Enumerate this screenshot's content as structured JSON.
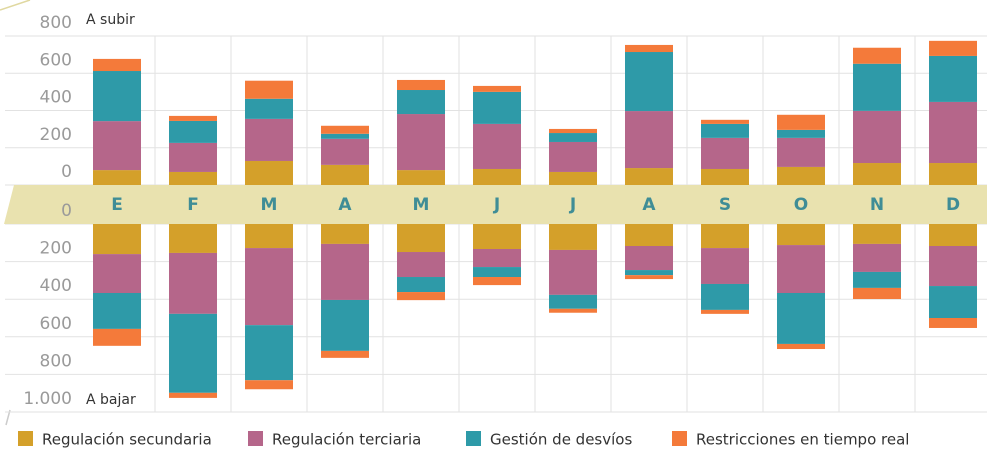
{
  "chart_data": {
    "type": "bar",
    "stacked": true,
    "categories": [
      "E",
      "F",
      "M",
      "A",
      "M",
      "J",
      "J",
      "A",
      "S",
      "O",
      "N",
      "D"
    ],
    "upper": {
      "label": "A subir",
      "ylim": [
        0,
        800
      ],
      "yticks": [
        0,
        200,
        400,
        600,
        800
      ]
    },
    "lower": {
      "label": "A bajar",
      "ylim": [
        0,
        1000
      ],
      "yticks": [
        0,
        200,
        400,
        600,
        800,
        {
          "value": 1000,
          "label": "1.000"
        }
      ]
    },
    "grid": true,
    "series": [
      {
        "name": "Regulación secundaria",
        "color": "#d4a02a",
        "up": [
          80,
          70,
          129,
          108,
          80,
          86,
          70,
          91,
          86,
          97,
          118,
          118
        ],
        "down": [
          160,
          154,
          128,
          106,
          149,
          133,
          138,
          117,
          128,
          112,
          106,
          117
        ]
      },
      {
        "name": "Regulación terciaria",
        "color": "#b5668a",
        "up": [
          263,
          156,
          226,
          140,
          301,
          242,
          161,
          306,
          167,
          156,
          280,
          328
        ],
        "down": [
          207,
          324,
          410,
          298,
          133,
          96,
          239,
          128,
          191,
          255,
          149,
          213
        ]
      },
      {
        "name": "Gestión de desvíos",
        "color": "#2e9aa8",
        "up": [
          269,
          118,
          108,
          27,
          129,
          172,
          48,
          317,
          75,
          43,
          253,
          247
        ],
        "down": [
          191,
          420,
          293,
          271,
          80,
          53,
          74,
          27,
          138,
          271,
          85,
          170
        ]
      },
      {
        "name": "Restricciones en tiempo real",
        "color": "#f47a3a",
        "up": [
          65,
          27,
          97,
          43,
          54,
          32,
          22,
          38,
          22,
          81,
          86,
          81
        ],
        "down": [
          90,
          27,
          48,
          37,
          43,
          43,
          21,
          21,
          21,
          27,
          59,
          53
        ]
      }
    ]
  }
}
